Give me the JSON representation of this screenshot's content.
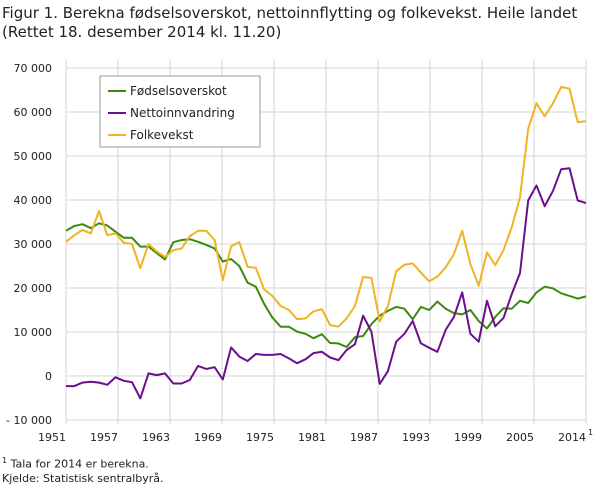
{
  "chart_data": {
    "type": "line",
    "title": "Figur 1. Berekna fødselsoverskot, nettoinnflytting og folkevekst. Heile landet (Rettet 18. desember 2014 kl. 11.20)",
    "xlabel": "",
    "ylabel": "",
    "ylim": [
      -10000,
      70000
    ],
    "yticks": [
      -10000,
      0,
      10000,
      20000,
      30000,
      40000,
      50000,
      60000,
      70000
    ],
    "ytick_labels": [
      "- 10 000",
      "0",
      "10 000",
      "20 000",
      "30 000",
      "40 000",
      "50 000",
      "60 000",
      "70 000"
    ],
    "xtick_labels": [
      "1951",
      "1957",
      "1963",
      "1969",
      "1975",
      "1981",
      "1987",
      "1993",
      "1999",
      "2005",
      "2014"
    ],
    "xtick_last_footnote": "1",
    "grid": true,
    "legend_placement": "top-left",
    "x": [
      1951,
      1952,
      1953,
      1954,
      1955,
      1956,
      1957,
      1958,
      1959,
      1960,
      1961,
      1962,
      1963,
      1964,
      1965,
      1966,
      1967,
      1968,
      1969,
      1970,
      1971,
      1972,
      1973,
      1974,
      1975,
      1976,
      1977,
      1978,
      1979,
      1980,
      1981,
      1982,
      1983,
      1984,
      1985,
      1986,
      1987,
      1988,
      1989,
      1990,
      1991,
      1992,
      1993,
      1994,
      1995,
      1996,
      1997,
      1998,
      1999,
      2000,
      2001,
      2002,
      2003,
      2004,
      2005,
      2006,
      2007,
      2008,
      2009,
      2010,
      2011,
      2012,
      2013,
      2014
    ],
    "series": [
      {
        "name": "Fødselsoverskot",
        "color": "#3c8a0e",
        "values": [
          33000,
          34100,
          34500,
          33600,
          34700,
          34200,
          32800,
          31400,
          31400,
          29400,
          29400,
          27900,
          26500,
          30400,
          30900,
          31100,
          30500,
          29800,
          29000,
          26000,
          26600,
          25000,
          21200,
          20300,
          16400,
          13300,
          11200,
          11200,
          10100,
          9600,
          8600,
          9500,
          7500,
          7400,
          6600,
          8800,
          9100,
          11800,
          13700,
          14800,
          15700,
          15300,
          12900,
          15700,
          15000,
          16900,
          15300,
          14300,
          14000,
          15000,
          12500,
          10800,
          13400,
          15400,
          15300,
          17100,
          16600,
          19000,
          20300,
          19900,
          18800,
          18200,
          17600,
          18100
        ]
      },
      {
        "name": "Nettoinnvandring",
        "color": "#6a0f8e",
        "values": [
          -2300,
          -2300,
          -1500,
          -1300,
          -1500,
          -2000,
          -300,
          -1100,
          -1400,
          -5100,
          600,
          200,
          600,
          -1700,
          -1700,
          -900,
          2300,
          1600,
          2000,
          -800,
          6500,
          4400,
          3400,
          5000,
          4800,
          4800,
          5000,
          4000,
          2900,
          3800,
          5200,
          5500,
          4200,
          3600,
          5900,
          7200,
          13700,
          10100,
          -1800,
          1100,
          7800,
          9600,
          12500,
          7400,
          6400,
          5500,
          10500,
          13400,
          19000,
          9600,
          7800,
          17100,
          11300,
          13200,
          18600,
          23400,
          39900,
          43300,
          38600,
          42100,
          47000,
          47200,
          39900,
          39300
        ]
      },
      {
        "name": "Folkevekst",
        "color": "#f0b323",
        "values": [
          30500,
          32000,
          33200,
          32400,
          37500,
          32000,
          32400,
          30300,
          30000,
          24500,
          30000,
          28300,
          27100,
          28600,
          29000,
          31800,
          33000,
          33000,
          30900,
          21800,
          29500,
          30400,
          24800,
          24600,
          19700,
          18200,
          15900,
          15000,
          12900,
          13100,
          14700,
          15200,
          11600,
          11200,
          13100,
          15900,
          22500,
          22300,
          12400,
          15900,
          23800,
          25300,
          25600,
          23500,
          21500,
          22600,
          24700,
          27700,
          33000,
          25400,
          20500,
          28100,
          25200,
          28600,
          33800,
          40600,
          56200,
          62000,
          59000,
          62000,
          65700,
          65300,
          57700,
          57900
        ]
      }
    ]
  },
  "footnotes": {
    "note_marker": "1",
    "note": "Tala for 2014 er berekna.",
    "source": "Kjelde: Statistisk sentralbyrå."
  }
}
